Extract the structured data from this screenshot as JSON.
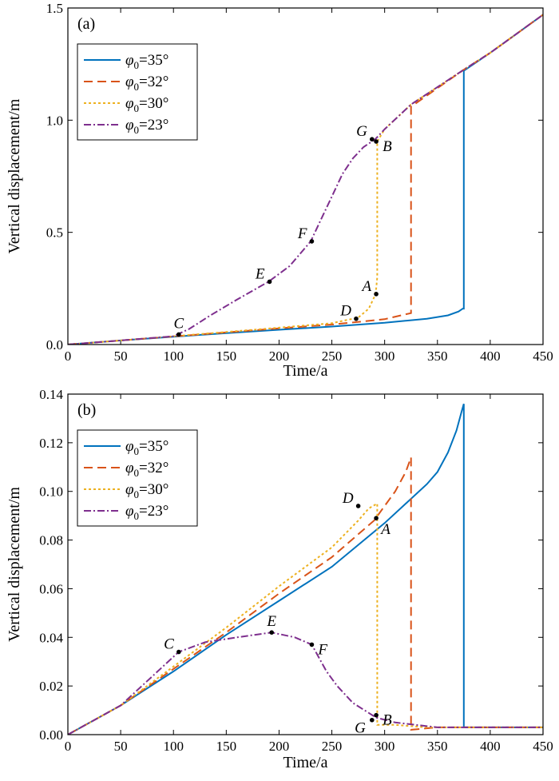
{
  "chart_data": [
    {
      "panel": "(a)",
      "type": "line",
      "xlabel": "Time/a",
      "ylabel": "Vertical displacement/m",
      "xlim": [
        0,
        450
      ],
      "ylim": [
        0,
        1.5
      ],
      "xticks": [
        0,
        50,
        100,
        150,
        200,
        250,
        300,
        350,
        400,
        450
      ],
      "yticks": [
        0,
        0.5,
        1.0,
        1.5
      ],
      "ytick_labels": [
        "0.0",
        "0.5",
        "1.0",
        "1.5"
      ],
      "legend_position": "top-left",
      "series": [
        {
          "name": "φ0=35°",
          "color": "#0072BD",
          "dash": "solid",
          "x": [
            0,
            50,
            100,
            150,
            200,
            250,
            300,
            340,
            360,
            370,
            374,
            375,
            375,
            400,
            450
          ],
          "y": [
            0,
            0.018,
            0.035,
            0.051,
            0.066,
            0.08,
            0.097,
            0.115,
            0.13,
            0.147,
            0.16,
            0.16,
            1.22,
            1.3,
            1.47
          ]
        },
        {
          "name": "φ0=32°",
          "color": "#D95319",
          "dash": "dashed",
          "x": [
            0,
            50,
            100,
            150,
            200,
            250,
            300,
            320,
            325,
            325,
            340,
            375,
            400,
            450
          ],
          "y": [
            0,
            0.018,
            0.036,
            0.054,
            0.072,
            0.089,
            0.113,
            0.135,
            0.14,
            1.06,
            1.11,
            1.225,
            1.3,
            1.47
          ]
        },
        {
          "name": "φ0=30°",
          "color": "#EDB120",
          "dash": "dotted",
          "x": [
            0,
            50,
            100,
            150,
            200,
            250,
            275,
            285,
            290,
            292,
            293,
            293,
            300,
            325,
            375,
            400,
            450
          ],
          "y": [
            0,
            0.018,
            0.037,
            0.056,
            0.075,
            0.095,
            0.12,
            0.16,
            0.21,
            0.25,
            0.3,
            0.905,
            0.96,
            1.07,
            1.225,
            1.3,
            1.47
          ]
        },
        {
          "name": "φ0=23°",
          "color": "#7E2F8E",
          "dash": "dashdot",
          "x": [
            0,
            50,
            100,
            115,
            135,
            160,
            190,
            210,
            230,
            240,
            250,
            260,
            270,
            280,
            291,
            300,
            325,
            375,
            400,
            450
          ],
          "y": [
            0,
            0.018,
            0.037,
            0.07,
            0.13,
            0.2,
            0.28,
            0.35,
            0.46,
            0.56,
            0.66,
            0.76,
            0.83,
            0.88,
            0.915,
            0.96,
            1.07,
            1.225,
            1.3,
            1.47
          ]
        }
      ],
      "annotations": [
        {
          "label": "A",
          "x": 292,
          "y": 0.225,
          "side": "left"
        },
        {
          "label": "B",
          "x": 292,
          "y": 0.905,
          "side": "right"
        },
        {
          "label": "C",
          "x": 105,
          "y": 0.045,
          "side": "above"
        },
        {
          "label": "D",
          "x": 273,
          "y": 0.115,
          "side": "left"
        },
        {
          "label": "E",
          "x": 191,
          "y": 0.28,
          "side": "left"
        },
        {
          "label": "F",
          "x": 231,
          "y": 0.46,
          "side": "left"
        },
        {
          "label": "G",
          "x": 288,
          "y": 0.915,
          "side": "left"
        }
      ]
    },
    {
      "panel": "(b)",
      "type": "line",
      "xlabel": "Time/a",
      "ylabel": "Vertical displacement/m",
      "xlim": [
        0,
        450
      ],
      "ylim": [
        0,
        0.14
      ],
      "xticks": [
        0,
        50,
        100,
        150,
        200,
        250,
        300,
        350,
        400,
        450
      ],
      "yticks": [
        0,
        0.02,
        0.04,
        0.06,
        0.08,
        0.1,
        0.12,
        0.14
      ],
      "ytick_labels": [
        "0.00",
        "0.02",
        "0.04",
        "0.06",
        "0.08",
        "0.10",
        "0.12",
        "0.14"
      ],
      "legend_position": "top-left",
      "series": [
        {
          "name": "φ0=35°",
          "color": "#0072BD",
          "dash": "solid",
          "x": [
            0,
            50,
            100,
            150,
            200,
            250,
            300,
            340,
            350,
            360,
            368,
            373,
            375,
            375,
            400,
            450
          ],
          "y": [
            0,
            0.012,
            0.026,
            0.041,
            0.055,
            0.069,
            0.087,
            0.103,
            0.108,
            0.116,
            0.125,
            0.133,
            0.136,
            0.003,
            0.003,
            0.003
          ]
        },
        {
          "name": "φ0=32°",
          "color": "#D95319",
          "dash": "dashed",
          "x": [
            0,
            50,
            100,
            150,
            200,
            250,
            290,
            310,
            320,
            325,
            325,
            350,
            375,
            450
          ],
          "y": [
            0,
            0.012,
            0.027,
            0.042,
            0.058,
            0.073,
            0.088,
            0.1,
            0.108,
            0.114,
            0.002,
            0.003,
            0.003,
            0.003
          ]
        },
        {
          "name": "φ0=30°",
          "color": "#EDB120",
          "dash": "dotted",
          "x": [
            0,
            50,
            100,
            150,
            200,
            250,
            275,
            285,
            293,
            293,
            310,
            340,
            375,
            450
          ],
          "y": [
            0,
            0.012,
            0.028,
            0.044,
            0.061,
            0.077,
            0.088,
            0.093,
            0.095,
            0.004,
            0.004,
            0.003,
            0.003,
            0.003
          ]
        },
        {
          "name": "φ0=23°",
          "color": "#7E2F8E",
          "dash": "dashdot",
          "x": [
            0,
            50,
            80,
            105,
            130,
            160,
            193,
            215,
            231,
            245,
            255,
            270,
            292,
            310,
            350,
            450
          ],
          "y": [
            0,
            0.012,
            0.024,
            0.034,
            0.038,
            0.04,
            0.042,
            0.04,
            0.037,
            0.026,
            0.02,
            0.013,
            0.007,
            0.005,
            0.003,
            0.003
          ]
        }
      ],
      "annotations": [
        {
          "label": "A",
          "x": 292,
          "y": 0.089,
          "side": "below-right"
        },
        {
          "label": "B",
          "x": 292,
          "y": 0.008,
          "side": "right"
        },
        {
          "label": "C",
          "x": 105,
          "y": 0.034,
          "side": "left"
        },
        {
          "label": "D",
          "x": 275,
          "y": 0.094,
          "side": "left"
        },
        {
          "label": "E",
          "x": 193,
          "y": 0.042,
          "side": "above"
        },
        {
          "label": "F",
          "x": 231,
          "y": 0.037,
          "side": "right"
        },
        {
          "label": "G",
          "x": 288,
          "y": 0.006,
          "side": "below-left"
        }
      ]
    }
  ]
}
